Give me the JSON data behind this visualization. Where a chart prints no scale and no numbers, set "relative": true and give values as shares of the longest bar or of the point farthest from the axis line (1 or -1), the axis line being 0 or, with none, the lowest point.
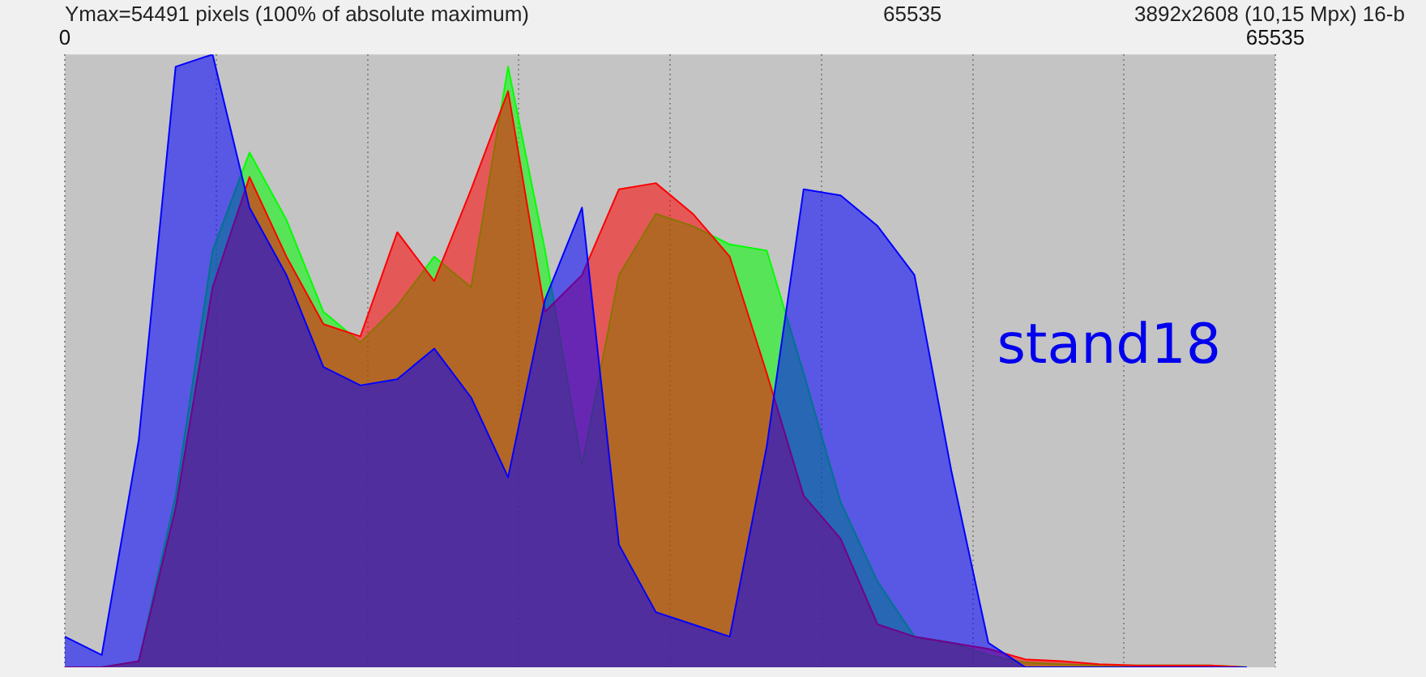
{
  "chart_data": {
    "type": "area",
    "relative": true,
    "annotations": [
      "Ymax=54491 pixels (100% of absolute maximum)",
      "65535",
      "3892x2608 (10,15 Mpx) 16-b",
      "stand18"
    ],
    "x": [
      0,
      2000,
      4000,
      6000,
      8000,
      10000,
      12000,
      14000,
      16000,
      18000,
      20000,
      22000,
      24000,
      26000,
      28000,
      30000,
      32000,
      34000,
      36000,
      38000,
      40000,
      42000,
      44000,
      46000,
      48000,
      50000,
      52000,
      54000,
      56000,
      58000,
      60000,
      62000,
      64000
    ],
    "xlim": [
      0,
      65535
    ],
    "xticks": [
      0,
      {
        "value": 8192,
        "label": null
      },
      {
        "value": 16384,
        "label": null
      },
      {
        "value": 24576,
        "label": null
      },
      {
        "value": 32768,
        "label": null
      },
      {
        "value": 40960,
        "label": null
      },
      {
        "value": 49152,
        "label": null
      },
      {
        "value": 57344,
        "label": null
      },
      65535
    ],
    "series": [
      {
        "color": "#0000ff",
        "values": [
          0.05,
          0.02,
          0.37,
          0.98,
          1,
          0.75,
          0.64,
          0.49,
          0.46,
          0.47,
          0.52,
          0.44,
          0.31,
          0.6,
          0.75,
          0.2,
          0.09,
          0.07,
          0.05,
          0.36,
          0.78,
          0.77,
          0.72,
          0.64,
          0.32,
          0.04,
          0,
          0,
          0,
          0,
          0,
          0,
          0
        ]
      },
      {
        "color": "#ff0000",
        "values": [
          0,
          0,
          0.01,
          0.26,
          0.62,
          0.8,
          0.67,
          0.56,
          0.54,
          0.71,
          0.63,
          0.78,
          0.94,
          0.58,
          0.64,
          0.78,
          0.79,
          0.74,
          0.67,
          0.48,
          0.28,
          0.21,
          0.07,
          0.05,
          0.04,
          0.03,
          0.013,
          0.01,
          0.005,
          0.003,
          0.003,
          0.003,
          0
        ]
      },
      {
        "color": "#00ff00",
        "values": [
          0,
          0,
          0.01,
          0.28,
          0.68,
          0.84,
          0.73,
          0.58,
          0.53,
          0.59,
          0.67,
          0.62,
          0.98,
          0.68,
          0.33,
          0.64,
          0.74,
          0.72,
          0.69,
          0.68,
          0.48,
          0.27,
          0.14,
          0.05,
          0.04,
          0.02,
          0.008,
          0.005,
          0.003,
          0.003,
          0.003,
          0.003,
          0
        ]
      }
    ],
    "grid": "x",
    "legend": false
  }
}
